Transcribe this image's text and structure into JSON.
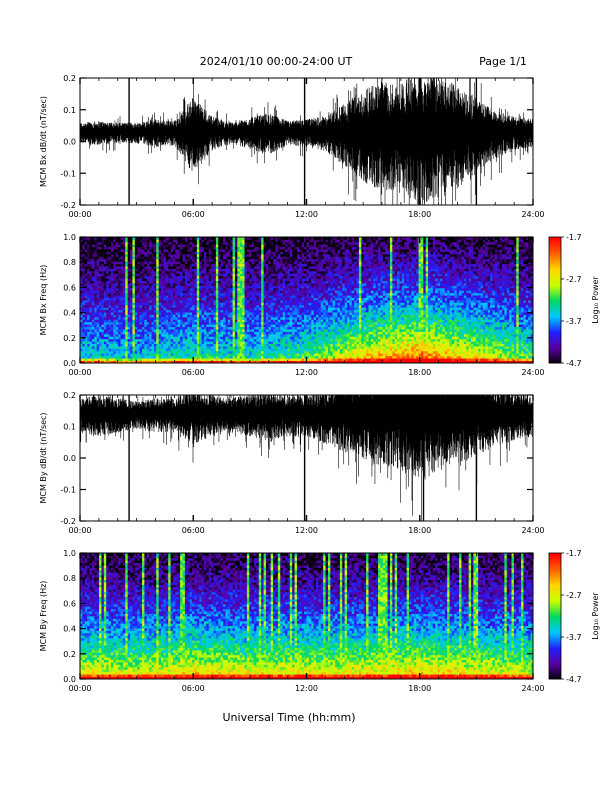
{
  "header": {
    "title": "2024/01/10  00:00-24:00 UT",
    "page": "Page 1/1"
  },
  "footer": {
    "xlabel": "Universal Time (hh:mm)"
  },
  "colors": {
    "trace": "#000000",
    "colorbar": [
      "#000000",
      "#5a00a0",
      "#2020ff",
      "#00c8ff",
      "#00d860",
      "#c8ff00",
      "#ffd800",
      "#ff6000",
      "#ff0000"
    ]
  },
  "chart_data": [
    {
      "type": "line",
      "ylabel": "MCM Bx dB/dt (nT/sec)",
      "xlim": [
        "00:00",
        "24:00"
      ],
      "ylim": [
        -0.2,
        0.2
      ],
      "x_ticks": [
        "00:00",
        "06:00",
        "12:00",
        "18:00",
        "24:00"
      ],
      "y_ticks": [
        "-0.2",
        "-0.1",
        "0.0",
        "0.1",
        "0.2"
      ],
      "baseline": 0.03,
      "envelope_hours": [
        0,
        1,
        2,
        3,
        4,
        5,
        6,
        7,
        8,
        9,
        10,
        11,
        12,
        13,
        14,
        15,
        16,
        17,
        18,
        19,
        20,
        21,
        22,
        23,
        24
      ],
      "envelope_amp": [
        0.03,
        0.035,
        0.03,
        0.03,
        0.04,
        0.035,
        0.11,
        0.05,
        0.03,
        0.045,
        0.06,
        0.035,
        0.04,
        0.05,
        0.09,
        0.13,
        0.16,
        0.15,
        0.2,
        0.17,
        0.15,
        0.1,
        0.07,
        0.05,
        0.04
      ],
      "spikes": [
        {
          "t": 2.6,
          "min": -0.2,
          "max": 0.2
        },
        {
          "t": 11.9,
          "min": -0.2,
          "max": 0.2
        },
        {
          "t": 21.0,
          "min": -0.2,
          "max": 0.2
        }
      ]
    },
    {
      "type": "heatmap",
      "ylabel": "MCM Bx Freq (Hz)",
      "colorbar_label": "Log₁₀ Power",
      "xlim": [
        "00:00",
        "24:00"
      ],
      "ylim": [
        0.0,
        1.0
      ],
      "x_ticks": [
        "00:00",
        "06:00",
        "12:00",
        "18:00",
        "24:00"
      ],
      "y_ticks": [
        "0.0",
        "0.2",
        "0.4",
        "0.6",
        "0.8",
        "1.0"
      ],
      "colorbar_ticks": [
        "-1.7",
        "-2.7",
        "-3.7",
        "-4.7"
      ],
      "zlim": [
        -4.7,
        -1.7
      ],
      "activity_hours": [
        0,
        3,
        6,
        9,
        12,
        15,
        18,
        21,
        24
      ],
      "activity": [
        0.25,
        0.2,
        0.3,
        0.25,
        0.35,
        0.6,
        0.75,
        0.55,
        0.35
      ]
    },
    {
      "type": "line",
      "ylabel": "MCM By dB/dt (nT/sec)",
      "xlim": [
        "00:00",
        "24:00"
      ],
      "ylim": [
        -0.2,
        0.2
      ],
      "x_ticks": [
        "00:00",
        "06:00",
        "12:00",
        "18:00",
        "24:00"
      ],
      "y_ticks": [
        "-0.2",
        "-0.1",
        "0.0",
        "0.1",
        "0.2"
      ],
      "baseline": 0.14,
      "envelope_hours": [
        0,
        1,
        2,
        3,
        4,
        5,
        6,
        7,
        8,
        9,
        10,
        11,
        12,
        13,
        14,
        15,
        16,
        17,
        18,
        19,
        20,
        21,
        22,
        23,
        24
      ],
      "envelope_amp": [
        0.05,
        0.06,
        0.05,
        0.04,
        0.05,
        0.05,
        0.08,
        0.06,
        0.05,
        0.06,
        0.07,
        0.06,
        0.06,
        0.08,
        0.1,
        0.12,
        0.14,
        0.15,
        0.18,
        0.15,
        0.14,
        0.11,
        0.09,
        0.07,
        0.06
      ],
      "spikes": [
        {
          "t": 2.6,
          "min": -0.2,
          "max": 0.2
        },
        {
          "t": 11.9,
          "min": -0.2,
          "max": 0.2
        },
        {
          "t": 18.2,
          "min": -0.2,
          "max": 0.2
        },
        {
          "t": 21.0,
          "min": -0.2,
          "max": 0.2
        }
      ]
    },
    {
      "type": "heatmap",
      "ylabel": "MCM By Freq (Hz)",
      "colorbar_label": "Log₁₀ Power",
      "xlim": [
        "00:00",
        "24:00"
      ],
      "ylim": [
        0.0,
        1.0
      ],
      "x_ticks": [
        "00:00",
        "06:00",
        "12:00",
        "18:00",
        "24:00"
      ],
      "y_ticks": [
        "0.0",
        "0.2",
        "0.4",
        "0.6",
        "0.8",
        "1.0"
      ],
      "colorbar_ticks": [
        "-1.7",
        "-2.7",
        "-3.7",
        "-4.7"
      ],
      "zlim": [
        -4.7,
        -1.7
      ],
      "activity_hours": [
        0,
        3,
        6,
        9,
        12,
        15,
        18,
        21,
        24
      ],
      "activity": [
        0.55,
        0.5,
        0.6,
        0.55,
        0.55,
        0.55,
        0.6,
        0.55,
        0.5
      ]
    }
  ]
}
